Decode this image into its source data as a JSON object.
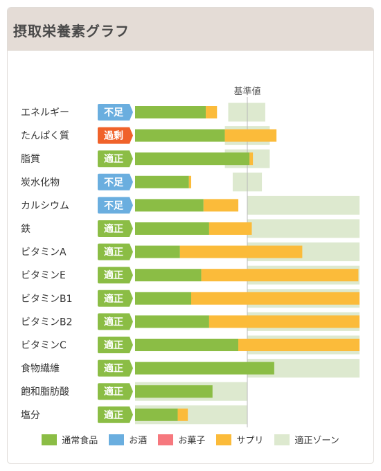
{
  "header": {
    "title": "摂取栄養素グラフ"
  },
  "chart_data": {
    "type": "bar",
    "reference_label": "基準値",
    "categories": [
      "エネルギー",
      "たんぱく質",
      "脂質",
      "炭水化物",
      "カルシウム",
      "鉄",
      "ビタミンA",
      "ビタミンE",
      "ビタミンB1",
      "ビタミンB2",
      "ビタミンC",
      "食物繊維",
      "飽和脂肪酸",
      "塩分"
    ],
    "status": [
      "不足",
      "過剰",
      "適正",
      "不足",
      "不足",
      "適正",
      "適正",
      "適正",
      "適正",
      "適正",
      "適正",
      "適正",
      "適正",
      "適正"
    ],
    "status_colors": {
      "不足": "#6aaedf",
      "過剰": "#f0622a",
      "適正": "#8bbd45"
    },
    "series": [
      {
        "name": "通常食品",
        "color": "#8bbd45",
        "values": [
          63,
          80,
          102,
          48,
          61,
          66,
          40,
          59,
          50,
          66,
          92,
          124,
          69,
          38
        ]
      },
      {
        "name": "お酒",
        "color": "#6aaedf",
        "values": [
          0,
          0,
          0,
          0,
          0,
          0,
          0,
          0,
          0,
          0,
          0,
          0,
          0,
          0
        ]
      },
      {
        "name": "お菓子",
        "color": "#f6787e",
        "values": [
          0,
          0,
          0,
          0,
          0,
          0,
          0,
          0,
          0,
          0,
          0,
          0,
          0,
          0
        ]
      },
      {
        "name": "サプリ",
        "color": "#fbbb3a",
        "values": [
          10,
          46,
          3,
          2,
          31,
          38,
          109,
          140,
          150,
          134,
          108,
          0,
          0,
          9
        ]
      }
    ],
    "ideal_zone": {
      "name": "適正ゾーン",
      "color": "#dde9cf",
      "ranges": [
        [
          83,
          116
        ],
        [
          80,
          120
        ],
        [
          80,
          120
        ],
        [
          87,
          113
        ],
        [
          100,
          200
        ],
        [
          100,
          200
        ],
        [
          100,
          200
        ],
        [
          100,
          200
        ],
        [
          100,
          200
        ],
        [
          100,
          200
        ],
        [
          100,
          200
        ],
        [
          100,
          200
        ],
        [
          0,
          100
        ],
        [
          0,
          100
        ]
      ]
    },
    "reference_value": 100,
    "axis_max": 200
  },
  "legend": [
    {
      "label": "通常食品",
      "color": "#8bbd45"
    },
    {
      "label": "お酒",
      "color": "#6aaedf"
    },
    {
      "label": "お菓子",
      "color": "#f6787e"
    },
    {
      "label": "サプリ",
      "color": "#fbbb3a"
    },
    {
      "label": "適正ゾーン",
      "color": "#dde9cf"
    }
  ]
}
